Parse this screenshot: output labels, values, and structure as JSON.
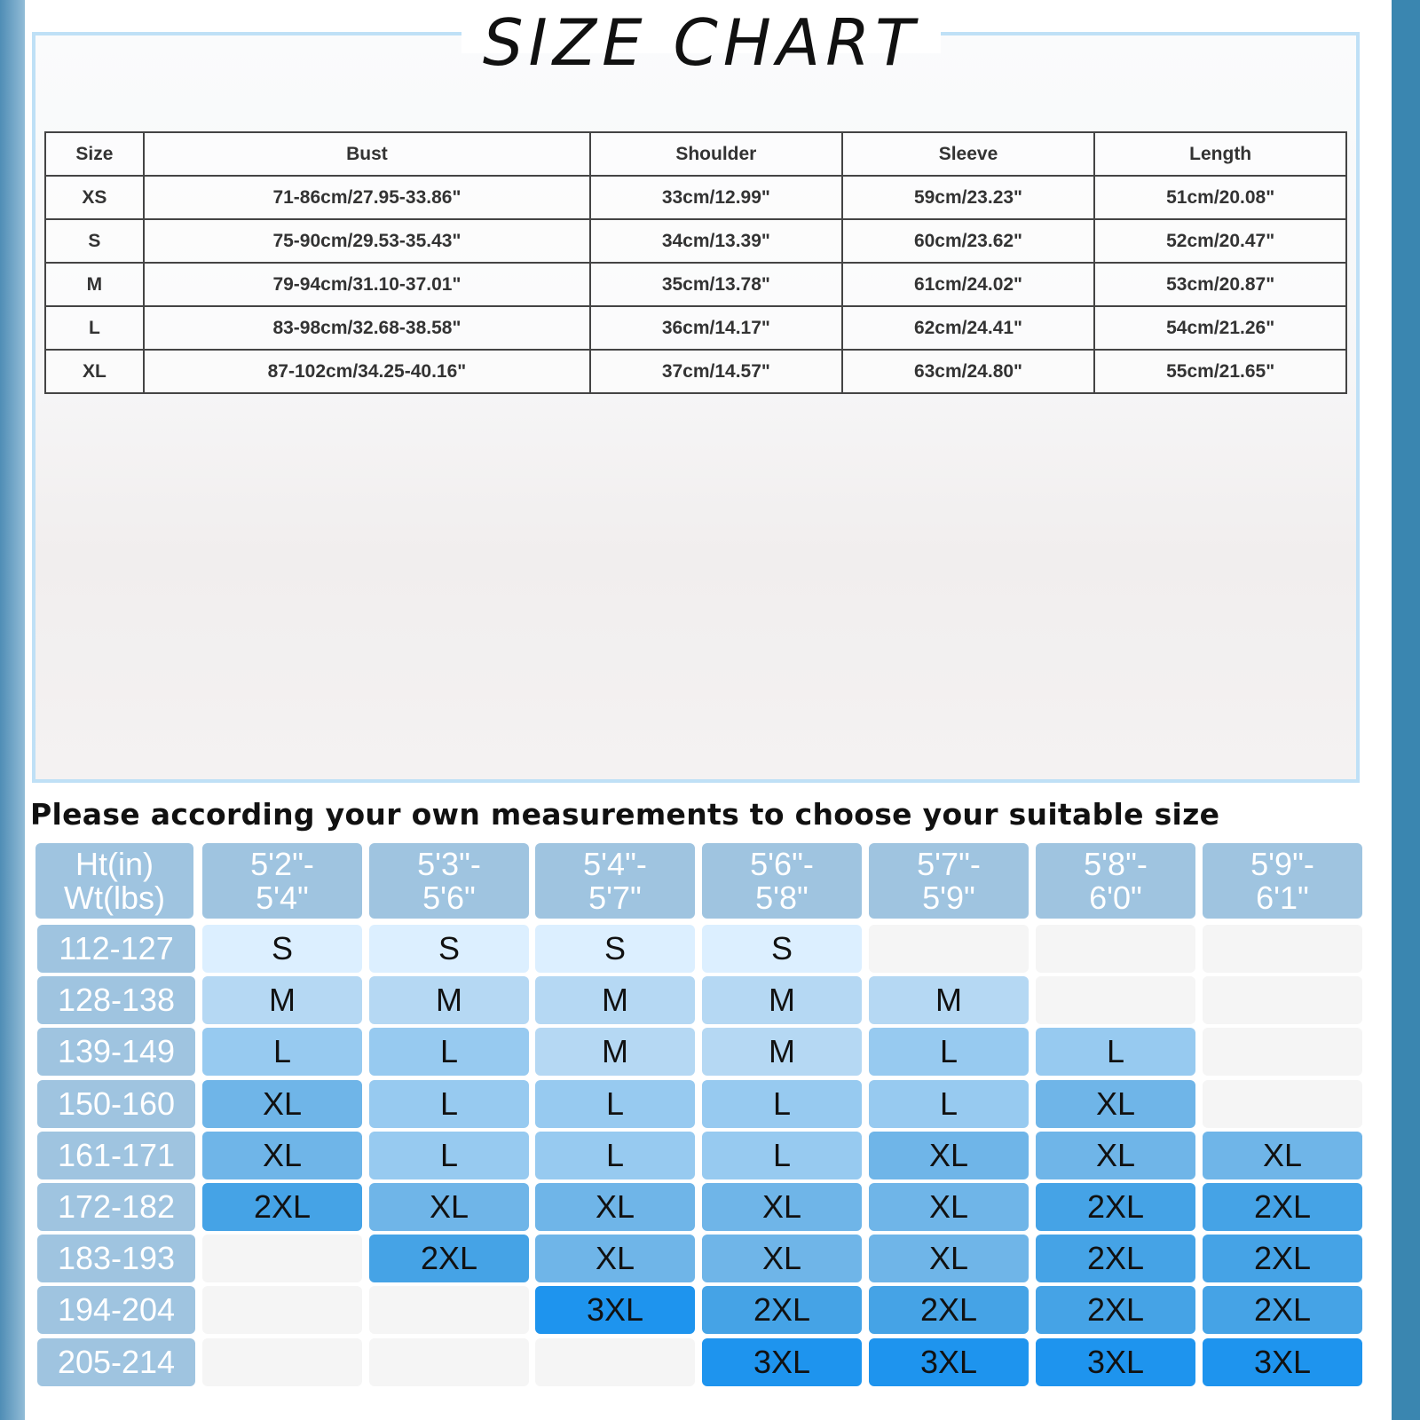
{
  "title": "SIZE CHART",
  "spec_table": {
    "headers": [
      "Size",
      "Bust",
      "Shoulder",
      "Sleeve",
      "Length"
    ],
    "rows": [
      [
        "XS",
        "71-86cm/27.95-33.86\"",
        "33cm/12.99\"",
        "59cm/23.23\"",
        "51cm/20.08\""
      ],
      [
        "S",
        "75-90cm/29.53-35.43\"",
        "34cm/13.39\"",
        "60cm/23.62\"",
        "52cm/20.47\""
      ],
      [
        "M",
        "79-94cm/31.10-37.01\"",
        "35cm/13.78\"",
        "61cm/24.02\"",
        "53cm/20.87\""
      ],
      [
        "L",
        "83-98cm/32.68-38.58\"",
        "36cm/14.17\"",
        "62cm/24.41\"",
        "54cm/21.26\""
      ],
      [
        "XL",
        "87-102cm/34.25-40.16\"",
        "37cm/14.57\"",
        "63cm/24.80\"",
        "55cm/21.65\""
      ]
    ]
  },
  "advice": "Please according your own measurements to choose your suitable size",
  "fit_grid": {
    "corner": [
      "Ht(in)",
      "Wt(lbs)"
    ],
    "heights": [
      [
        "5'2\"-",
        "5'4\""
      ],
      [
        "5'3\"-",
        "5'6\""
      ],
      [
        "5'4\"-",
        "5'7\""
      ],
      [
        "5'6\"-",
        "5'8\""
      ],
      [
        "5'7\"-",
        "5'9\""
      ],
      [
        "5'8\"-",
        "6'0\""
      ],
      [
        "5'9\"-",
        "6'1\""
      ]
    ],
    "weights": [
      "112-127",
      "128-138",
      "139-149",
      "150-160",
      "161-171",
      "172-182",
      "183-193",
      "194-204",
      "205-214"
    ],
    "cells": [
      [
        "S",
        "S",
        "S",
        "S",
        "",
        "",
        ""
      ],
      [
        "M",
        "M",
        "M",
        "M",
        "M",
        "",
        ""
      ],
      [
        "L",
        "L",
        "M",
        "M",
        "L",
        "L",
        ""
      ],
      [
        "XL",
        "L",
        "L",
        "L",
        "L",
        "XL",
        ""
      ],
      [
        "XL",
        "L",
        "L",
        "L",
        "XL",
        "XL",
        "XL"
      ],
      [
        "2XL",
        "XL",
        "XL",
        "XL",
        "XL",
        "2XL",
        "2XL"
      ],
      [
        "",
        "2XL",
        "XL",
        "XL",
        "XL",
        "2XL",
        "2XL"
      ],
      [
        "",
        "",
        "3XL",
        "2XL",
        "2XL",
        "2XL",
        "2XL"
      ],
      [
        "",
        "",
        "",
        "3XL",
        "3XL",
        "3XL",
        "3XL"
      ]
    ]
  },
  "colors": {
    "header": "#9fc4e0",
    "empty": "#f5f5f5",
    "S": "#dcefff",
    "M": "#b5d8f3",
    "L": "#97caf0",
    "XL": "#6fb5e8",
    "2XL": "#45a3e6",
    "3XL": "#1e94ee"
  }
}
